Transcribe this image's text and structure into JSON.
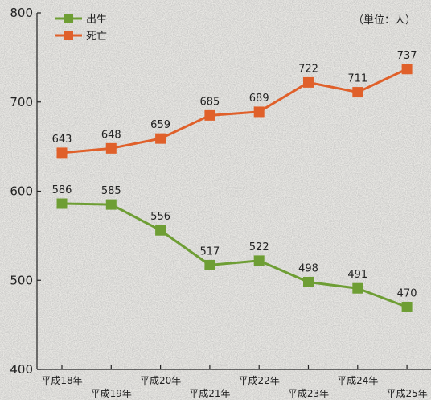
{
  "chart_data": {
    "type": "line",
    "unit_label": "（単位：人）",
    "categories": [
      "平成18年",
      "平成19年",
      "平成20年",
      "平成21年",
      "平成22年",
      "平成23年",
      "平成24年",
      "平成25年"
    ],
    "series": [
      {
        "name": "出生",
        "color": "#6e9e34",
        "values": [
          586,
          585,
          556,
          517,
          522,
          498,
          491,
          470
        ]
      },
      {
        "name": "死亡",
        "color": "#e0602a",
        "values": [
          643,
          648,
          659,
          685,
          689,
          722,
          711,
          737
        ]
      }
    ],
    "y_ticks": [
      400,
      500,
      600,
      700,
      800
    ],
    "ylim": [
      400,
      800
    ],
    "grid": false,
    "legend_position": "top-left"
  }
}
